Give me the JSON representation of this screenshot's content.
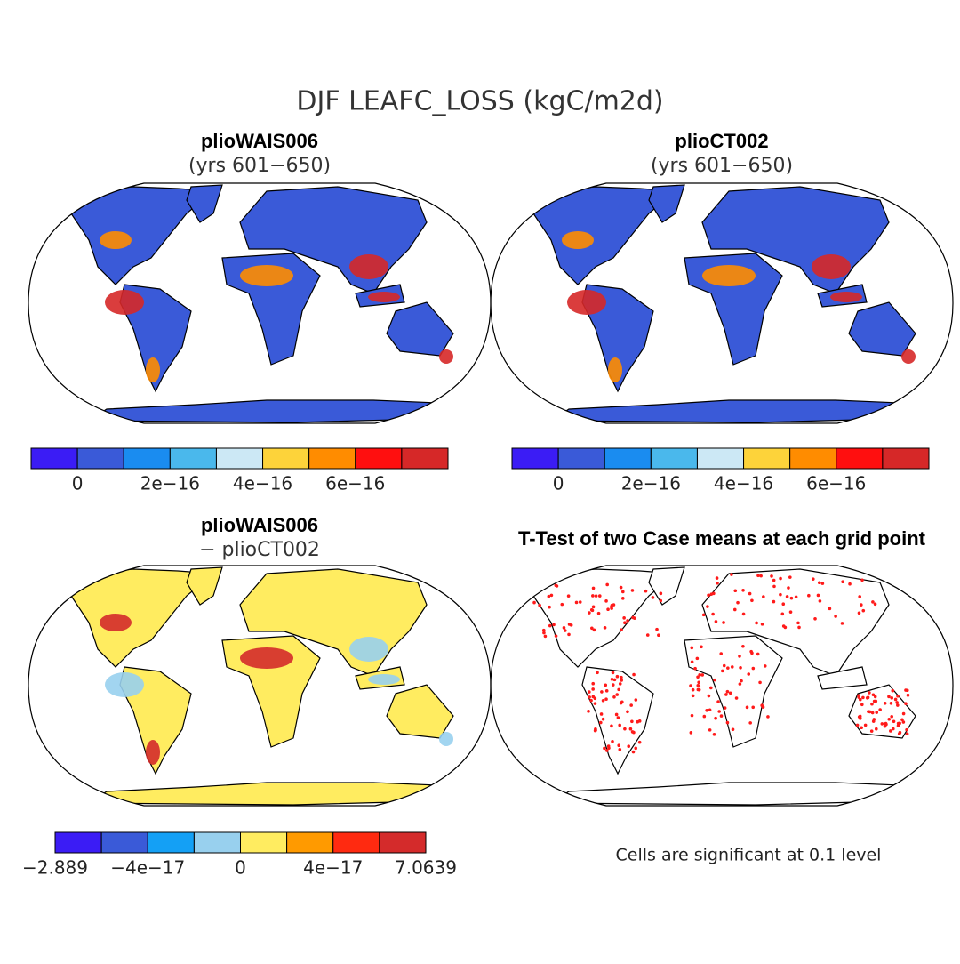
{
  "title": "DJF LEAFC_LOSS (kgC/m2d)",
  "panels": [
    {
      "title": "plioWAIS006",
      "subtitle": "(yrs 601−650)",
      "colorbar": {
        "colors": [
          "#3b1cf5",
          "#3a5ad8",
          "#1a8cf0",
          "#4ab8ec",
          "#cce8f5",
          "#fdd33a",
          "#ff8c00",
          "#ff0f0f",
          "#d62828"
        ],
        "labels": [
          "0",
          "2e−16",
          "4e−16",
          "6e−16"
        ]
      }
    },
    {
      "title": "plioCT002",
      "subtitle": "(yrs 601−650)",
      "colorbar": {
        "colors": [
          "#3b1cf5",
          "#3a5ad8",
          "#1a8cf0",
          "#4ab8ec",
          "#cce8f5",
          "#fdd33a",
          "#ff8c00",
          "#ff0f0f",
          "#d62828"
        ],
        "labels": [
          "0",
          "2e−16",
          "4e−16",
          "6e−16"
        ]
      }
    },
    {
      "title": "plioWAIS006",
      "subtitle": "− plioCT002",
      "colorbar": {
        "colors": [
          "#3b1cf5",
          "#3a5ad8",
          "#14a0f5",
          "#98d0ee",
          "#ffec60",
          "#ff9a00",
          "#ff2a10",
          "#d42b2b"
        ],
        "labels": [
          "−2.889",
          "−4e−17",
          "0",
          "4e−17",
          "7.0639"
        ]
      }
    },
    {
      "title": "T-Test of two Case means at each grid point",
      "note": "Cells are significant at 0.1 level"
    }
  ]
}
